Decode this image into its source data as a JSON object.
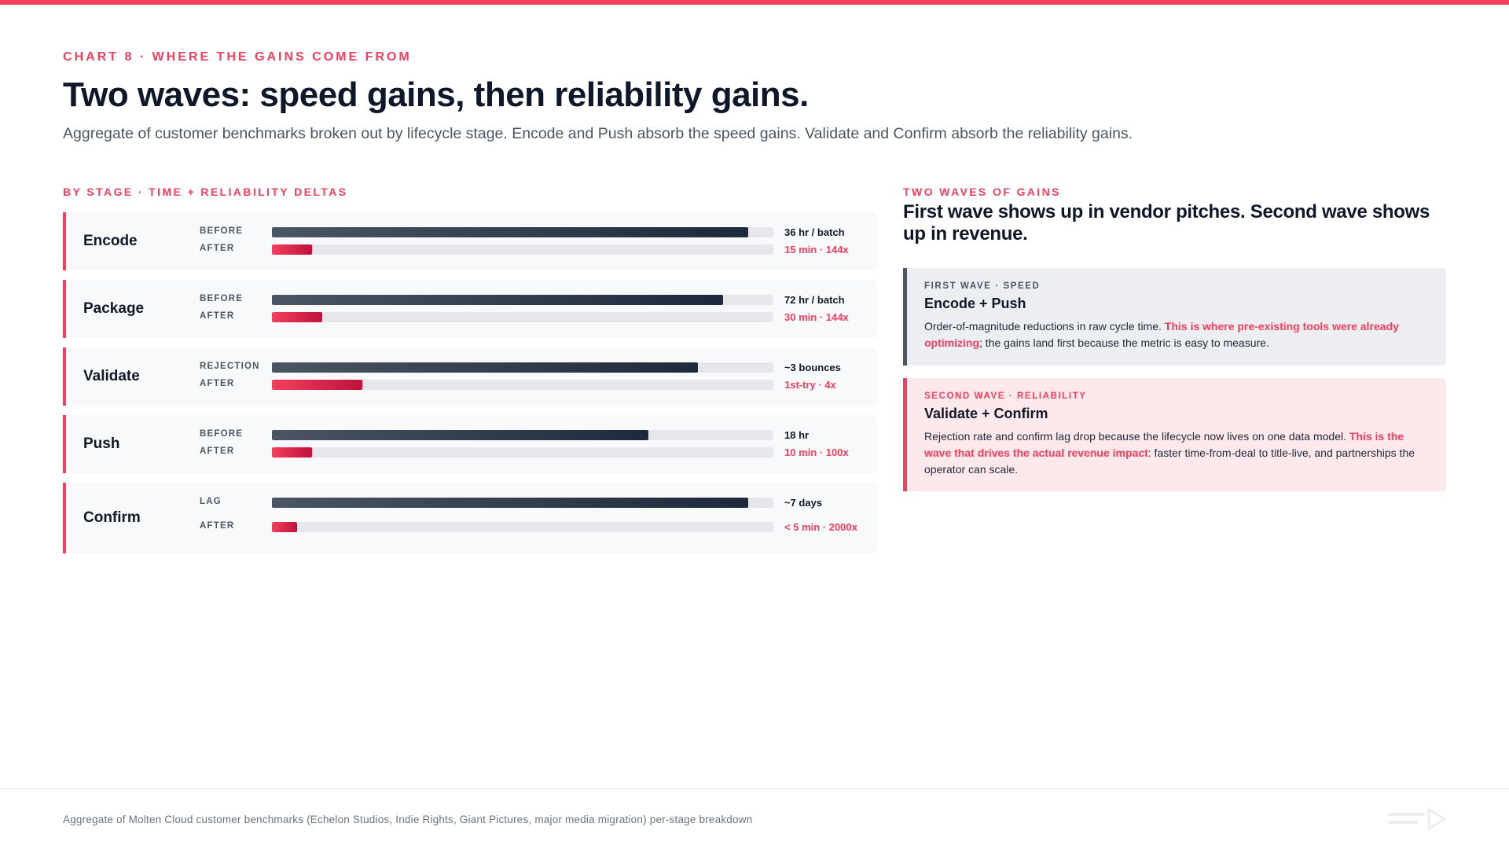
{
  "header": {
    "eyebrow": "CHART 8 · WHERE THE GAINS COME FROM",
    "title": "Two waves: speed gains, then reliability gains.",
    "subtitle": "Aggregate of customer benchmarks broken out by lifecycle stage. Encode and Push absorb the speed gains. Validate and Confirm absorb the reliability gains."
  },
  "chart_data": {
    "type": "bar",
    "title": "BY STAGE · TIME + RELIABILITY DELTAS",
    "orientation": "horizontal",
    "grid": false,
    "categories": [
      "Encode",
      "Package",
      "Validate",
      "Push",
      "Confirm"
    ],
    "rows": [
      {
        "stage": "Encode",
        "before_label": "BEFORE",
        "after_label": "AFTER",
        "before_value": "36 hr / batch",
        "after_value": "15 min · 144x",
        "before_fraction": 0.95,
        "after_fraction": 0.08
      },
      {
        "stage": "Package",
        "before_label": "BEFORE",
        "after_label": "AFTER",
        "before_value": "72 hr / batch",
        "after_value": "30 min · 144x",
        "before_fraction": 0.9,
        "after_fraction": 0.1
      },
      {
        "stage": "Validate",
        "before_label": "REJECTION",
        "after_label": "AFTER",
        "before_value": "~3 bounces",
        "after_value": "1st-try · 4x",
        "before_fraction": 0.85,
        "after_fraction": 0.18
      },
      {
        "stage": "Push",
        "before_label": "BEFORE",
        "after_label": "AFTER",
        "before_value": "18 hr",
        "after_value": "10 min · 100x",
        "before_fraction": 0.75,
        "after_fraction": 0.08
      },
      {
        "stage": "Confirm",
        "before_label": "LAG",
        "after_label": "AFTER",
        "before_value": "~7 days",
        "after_value": "< 5 min · 2000x",
        "before_fraction": 0.95,
        "after_fraction": 0.05
      }
    ],
    "colors": {
      "before": "#1e293b",
      "after": "#f43f5e",
      "track": "#e5e7eb",
      "accent": "#f43f5e"
    }
  },
  "panel": {
    "label": "TWO WAVES OF GAINS",
    "title": "First wave shows up in vendor pitches. Second wave shows up in revenue.",
    "waves": [
      {
        "eyebrow": "FIRST WAVE · SPEED",
        "title": "Encode + Push",
        "body_before": "Order-of-magnitude reductions in raw cycle time. ",
        "body_highlight": "This is where pre-existing tools were already optimizing",
        "body_after": "; the gains land first because the metric is easy to measure."
      },
      {
        "eyebrow": "SECOND WAVE · RELIABILITY",
        "title": "Validate + Confirm",
        "body_before": "Rejection rate and confirm lag drop because the lifecycle now lives on one data model. ",
        "body_highlight": "This is the wave that drives the actual revenue impact",
        "body_after": ": faster time-from-deal to title-live, and partnerships the operator can scale."
      }
    ]
  },
  "footer": {
    "note": "Aggregate of Molten Cloud customer benchmarks (Echelon Studios, Indie Rights, Giant Pictures, major media migration) per-stage breakdown"
  }
}
